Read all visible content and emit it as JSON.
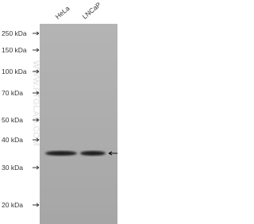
{
  "lanes": [
    "HeLa",
    "LNCaP"
  ],
  "markers": [
    "250 kDa",
    "150 kDa",
    "100 kDa",
    "70 kDa",
    "50 kDa",
    "40 kDa",
    "30 kDa",
    "20 kDa"
  ],
  "watermark": "WWW.PTGLAB.COM"
}
